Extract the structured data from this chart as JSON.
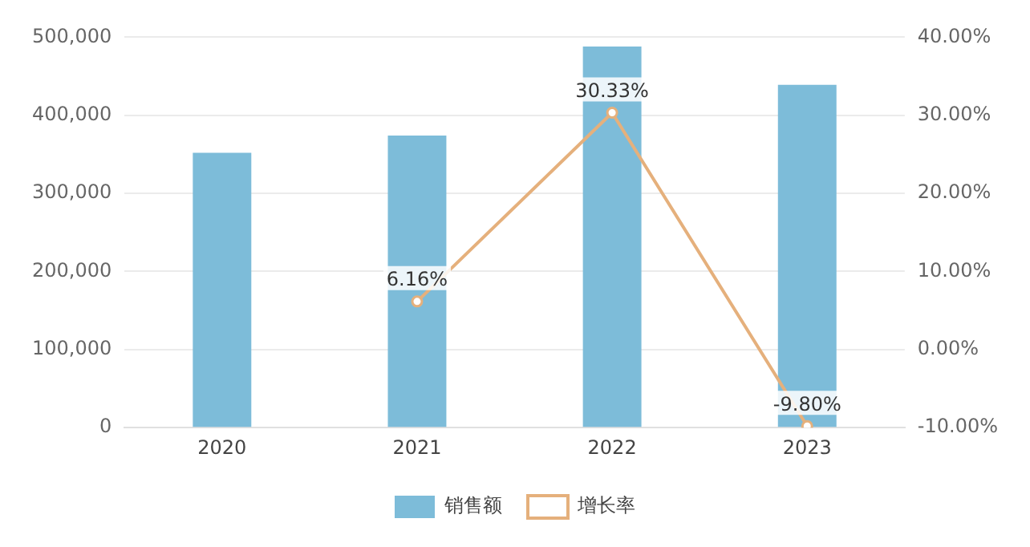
{
  "chart_data": {
    "type": "bar",
    "categories": [
      "2020",
      "2021",
      "2022",
      "2023"
    ],
    "series": [
      {
        "name": "销售额",
        "color": "#7dbcd9",
        "values": [
          352000,
          374000,
          488000,
          439000
        ]
      },
      {
        "name": "增长率",
        "type": "line",
        "axis": "y2",
        "color": "#e5b07c",
        "values": [
          null,
          6.16,
          30.33,
          -9.8
        ],
        "value_labels": [
          null,
          "6.16%",
          "30.33%",
          "-9.80%"
        ]
      }
    ],
    "ylim": [
      0,
      500000
    ],
    "yticks": [
      0,
      {
        "value": 100000,
        "label": "100,000"
      },
      {
        "value": 200000,
        "label": "200,000"
      },
      {
        "value": 300000,
        "label": "300,000"
      },
      {
        "value": 400000,
        "label": "400,000"
      },
      {
        "value": 500000,
        "label": "500,000"
      }
    ],
    "y2lim": [
      -10,
      40
    ],
    "y2ticks": [
      {
        "value": -10,
        "label": "-10.00%"
      },
      {
        "value": 0,
        "label": "0.00%"
      },
      {
        "value": 10,
        "label": "10.00%"
      },
      {
        "value": 20,
        "label": "20.00%"
      },
      {
        "value": 30,
        "label": "30.00%"
      },
      {
        "value": 40,
        "label": "40.00%"
      }
    ],
    "grid": "y",
    "legend": "bottom",
    "marker": "circle",
    "line_style": "solid"
  }
}
